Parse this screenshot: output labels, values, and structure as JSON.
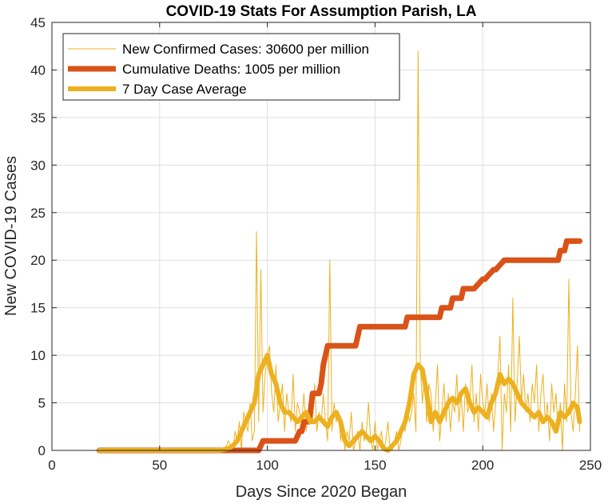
{
  "chart_data": {
    "type": "line",
    "title": "COVID-19 Stats For Assumption Parish, LA",
    "xlabel": "Days Since 2020 Began",
    "ylabel": "New COVID-19 Cases",
    "xlim": [
      0,
      250
    ],
    "ylim": [
      0,
      45
    ],
    "xticks": [
      0,
      50,
      100,
      150,
      200,
      250
    ],
    "yticks": [
      0,
      5,
      10,
      15,
      20,
      25,
      30,
      35,
      40,
      45
    ],
    "grid": true,
    "legend_position": "top-left",
    "series": [
      {
        "name": "New Confirmed Cases: 30600 per million",
        "color": "#EDB120",
        "style": "thin",
        "x": [
          22,
          30,
          40,
          50,
          60,
          70,
          78,
          80,
          82,
          84,
          85,
          86,
          87,
          88,
          89,
          90,
          91,
          92,
          93,
          94,
          95,
          96,
          97,
          98,
          99,
          100,
          101,
          102,
          103,
          104,
          105,
          106,
          107,
          108,
          109,
          110,
          111,
          112,
          113,
          114,
          115,
          116,
          117,
          118,
          119,
          120,
          121,
          122,
          123,
          124,
          125,
          126,
          127,
          128,
          129,
          130,
          131,
          132,
          133,
          134,
          135,
          136,
          137,
          138,
          139,
          140,
          141,
          142,
          143,
          144,
          145,
          146,
          147,
          148,
          149,
          150,
          151,
          152,
          153,
          154,
          155,
          156,
          157,
          158,
          159,
          160,
          161,
          162,
          163,
          164,
          165,
          166,
          167,
          168,
          169,
          170,
          171,
          172,
          173,
          174,
          175,
          176,
          177,
          178,
          179,
          180,
          181,
          182,
          183,
          184,
          185,
          186,
          187,
          188,
          189,
          190,
          191,
          192,
          193,
          194,
          195,
          196,
          197,
          198,
          199,
          200,
          201,
          202,
          203,
          204,
          205,
          206,
          207,
          208,
          209,
          210,
          211,
          212,
          213,
          214,
          215,
          216,
          217,
          218,
          219,
          220,
          221,
          222,
          223,
          224,
          225,
          226,
          227,
          228,
          229,
          230,
          231,
          232,
          233,
          234,
          235,
          236,
          237,
          238,
          239,
          240,
          241,
          242,
          243,
          244,
          245
        ],
        "y": [
          0,
          0,
          0,
          0,
          0,
          0,
          0,
          0,
          1,
          0,
          2,
          1,
          3,
          0,
          4,
          3,
          2,
          5,
          1,
          2,
          23,
          3,
          19,
          4,
          8,
          10,
          11,
          6,
          4,
          9,
          3,
          5,
          7,
          2,
          6,
          4,
          3,
          8,
          2,
          5,
          4,
          3,
          6,
          2,
          4,
          5,
          3,
          7,
          2,
          4,
          3,
          6,
          3,
          1,
          20,
          2,
          5,
          3,
          4,
          1,
          3,
          0,
          2,
          1,
          4,
          0,
          1,
          2,
          0,
          3,
          1,
          2,
          5,
          1,
          0,
          3,
          0,
          1,
          2,
          0,
          1,
          3,
          0,
          0,
          1,
          2,
          0,
          1,
          3,
          2,
          5,
          3,
          4,
          6,
          2,
          42,
          9,
          5,
          8,
          3,
          7,
          6,
          2,
          5,
          9,
          1,
          4,
          7,
          3,
          6,
          2,
          5,
          4,
          8,
          3,
          6,
          2,
          7,
          4,
          5,
          9,
          3,
          6,
          2,
          8,
          5,
          4,
          7,
          3,
          6,
          2,
          5,
          8,
          12,
          0,
          6,
          4,
          9,
          2,
          16,
          3,
          7,
          12,
          5,
          8,
          4,
          6,
          3,
          7,
          5,
          9,
          2,
          6,
          8,
          3,
          5,
          1,
          7,
          4,
          6,
          2,
          5,
          0,
          7,
          3,
          18,
          4,
          2,
          6,
          11,
          2
        ]
      },
      {
        "name": "Cumulative Deaths: 1005 per million",
        "color": "#D95319",
        "style": "thick",
        "x": [
          22,
          96,
          97,
          98,
          99,
          100,
          110,
          113,
          114,
          115,
          116,
          117,
          118,
          119,
          120,
          121,
          122,
          123,
          124,
          125,
          126,
          127,
          128,
          129,
          130,
          131,
          132,
          140,
          141,
          142,
          143,
          144,
          150,
          160,
          164,
          165,
          166,
          167,
          168,
          170,
          175,
          180,
          181,
          185,
          186,
          190,
          191,
          195,
          196,
          200,
          201,
          205,
          206,
          210,
          211,
          215,
          216,
          220,
          230,
          235,
          236,
          238,
          239,
          245
        ],
        "y": [
          0,
          0,
          0.5,
          1,
          1,
          1,
          1,
          1,
          1.5,
          2,
          2,
          3,
          3,
          3,
          4,
          6,
          6,
          6,
          6,
          7,
          9,
          10,
          11,
          11,
          11,
          11,
          11,
          11,
          11,
          12,
          13,
          13,
          13,
          13,
          13,
          14,
          14,
          14,
          14,
          14,
          14,
          14,
          15,
          15,
          16,
          16,
          17,
          17,
          17,
          18,
          18,
          19,
          19,
          20,
          20,
          20,
          20,
          20,
          20,
          20,
          21,
          21,
          22,
          22
        ]
      },
      {
        "name": "7 Day Case Average",
        "color": "#EDB120",
        "style": "medium",
        "x": [
          22,
          40,
          60,
          78,
          82,
          84,
          86,
          88,
          90,
          92,
          94,
          96,
          98,
          100,
          102,
          104,
          106,
          108,
          110,
          112,
          114,
          116,
          118,
          120,
          122,
          124,
          126,
          128,
          130,
          132,
          134,
          136,
          138,
          140,
          142,
          144,
          146,
          148,
          150,
          152,
          154,
          156,
          158,
          160,
          162,
          164,
          166,
          168,
          170,
          172,
          174,
          176,
          178,
          180,
          182,
          184,
          186,
          188,
          190,
          192,
          194,
          196,
          198,
          200,
          202,
          204,
          206,
          208,
          210,
          212,
          214,
          216,
          218,
          220,
          222,
          224,
          226,
          228,
          230,
          232,
          234,
          236,
          238,
          240,
          242,
          244,
          245
        ],
        "y": [
          0,
          0,
          0,
          0,
          0.2,
          0.5,
          1,
          2,
          3,
          4,
          5,
          8,
          9,
          10,
          8,
          7,
          5,
          4,
          4,
          3.5,
          3,
          3.5,
          4,
          3,
          3,
          3.5,
          3,
          2.5,
          3.5,
          4,
          3,
          1,
          0.5,
          1,
          1.5,
          2,
          1.5,
          1,
          1.5,
          1,
          0.2,
          0,
          0.5,
          1,
          2,
          3,
          5,
          8,
          9,
          8.5,
          6,
          3,
          4,
          3,
          4,
          5,
          5.5,
          5,
          6,
          6.5,
          5,
          4,
          4.5,
          4,
          3.5,
          5,
          6,
          8,
          7,
          7.5,
          7,
          6,
          5,
          4.5,
          4,
          3.5,
          4,
          3,
          3.5,
          3,
          2,
          4,
          3.5,
          4,
          5,
          4.5,
          3
        ]
      }
    ]
  }
}
